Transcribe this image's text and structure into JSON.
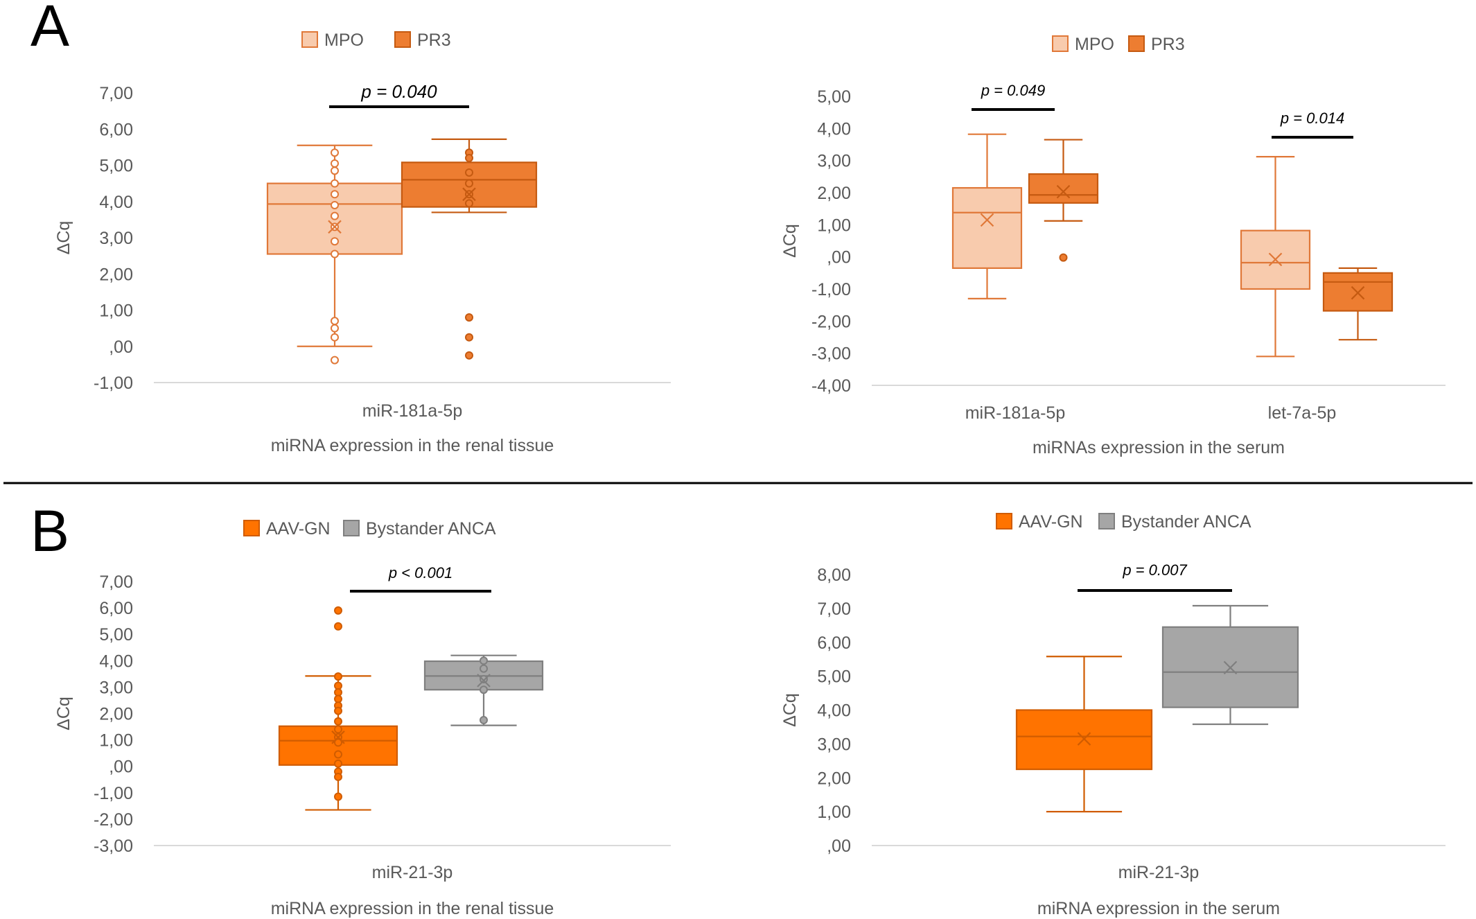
{
  "panel_labels": [
    "A",
    "B"
  ],
  "chart_data": [
    {
      "type": "box",
      "title": "",
      "xlabel": "miRNA expression in the renal tissue",
      "ylabel": "ΔCq",
      "ylim": [
        -1,
        7
      ],
      "yticks": [
        "-1,00",
        ",00",
        "1,00",
        "2,00",
        "3,00",
        "4,00",
        "5,00",
        "6,00",
        "7,00"
      ],
      "categories": [
        "miR-181a-5p"
      ],
      "legend": [
        {
          "name": "MPO",
          "fill": "#f8cbad",
          "stroke": "#e07838"
        },
        {
          "name": "PR3",
          "fill": "#ed7d31",
          "stroke": "#c55a11"
        }
      ],
      "series": [
        {
          "name": "MPO",
          "fill": "#f8cbad",
          "stroke": "#e07838",
          "point_fill": "#ffffff",
          "boxes": [
            {
              "min": 0.0,
              "q1": 2.55,
              "median": 3.93,
              "q3": 4.5,
              "max": 5.55,
              "mean": 3.3,
              "points": [
                5.35,
                5.05,
                4.85,
                4.5,
                4.2,
                3.9,
                3.6,
                3.3,
                2.9,
                2.55,
                0.7,
                0.5,
                0.25,
                -0.38
              ]
            }
          ]
        },
        {
          "name": "PR3",
          "fill": "#ed7d31",
          "stroke": "#c55a11",
          "point_fill": "#ed7d31",
          "boxes": [
            {
              "min": 3.7,
              "q1": 3.85,
              "median": 4.6,
              "q3": 5.08,
              "max": 5.72,
              "mean": 4.2,
              "points": [
                5.35,
                5.2,
                4.8,
                4.5,
                4.2,
                3.95,
                0.8,
                0.25,
                -0.25
              ]
            }
          ]
        }
      ],
      "annotations": [
        {
          "text": "p = 0.040",
          "category_span": [
            0,
            0
          ]
        }
      ]
    },
    {
      "type": "box",
      "title": "",
      "xlabel": "miRNAs expression in the serum",
      "ylabel": "ΔCq",
      "ylim": [
        -4,
        5
      ],
      "yticks": [
        "-4,00",
        "-3,00",
        "-2,00",
        "-1,00",
        ",00",
        "1,00",
        "2,00",
        "3,00",
        "4,00",
        "5,00"
      ],
      "categories": [
        "miR-181a-5p",
        "let-7a-5p"
      ],
      "legend": [
        {
          "name": "MPO",
          "fill": "#f8cbad",
          "stroke": "#e07838"
        },
        {
          "name": "PR3",
          "fill": "#ed7d31",
          "stroke": "#c55a11"
        }
      ],
      "series": [
        {
          "name": "MPO",
          "fill": "#f8cbad",
          "stroke": "#e07838",
          "point_fill": "#ffffff",
          "boxes": [
            {
              "min": -1.3,
              "q1": -0.35,
              "median": 1.38,
              "q3": 2.15,
              "max": 3.82,
              "mean": 1.15,
              "points": []
            },
            {
              "min": -3.1,
              "q1": -1.0,
              "median": -0.18,
              "q3": 0.82,
              "max": 3.12,
              "mean": -0.08,
              "points": []
            }
          ]
        },
        {
          "name": "PR3",
          "fill": "#ed7d31",
          "stroke": "#c55a11",
          "point_fill": "#ed7d31",
          "boxes": [
            {
              "min": 1.12,
              "q1": 1.68,
              "median": 1.93,
              "q3": 2.58,
              "max": 3.65,
              "mean": 2.03,
              "points": [
                -0.02
              ]
            },
            {
              "min": -2.58,
              "q1": -1.68,
              "median": -0.78,
              "q3": -0.5,
              "max": -0.35,
              "mean": -1.12,
              "points": []
            }
          ]
        }
      ],
      "annotations": [
        {
          "text": "p = 0.049",
          "category_span": [
            0,
            0
          ]
        },
        {
          "text": "p = 0.014",
          "category_span": [
            1,
            1
          ]
        }
      ]
    },
    {
      "type": "box",
      "title": "",
      "xlabel": "miRNA expression in the renal tissue",
      "ylabel": "ΔCq",
      "ylim": [
        -3,
        7
      ],
      "yticks": [
        "-3,00",
        "-2,00",
        "-1,00",
        ",00",
        "1,00",
        "2,00",
        "3,00",
        "4,00",
        "5,00",
        "6,00",
        "7,00"
      ],
      "categories": [
        "miR-21-3p"
      ],
      "legend": [
        {
          "name": "AAV-GN",
          "fill": "#ff7300",
          "stroke": "#d05c00"
        },
        {
          "name": "Bystander ANCA",
          "fill": "#a6a6a6",
          "stroke": "#7f7f7f"
        }
      ],
      "series": [
        {
          "name": "AAV-GN",
          "fill": "#ff7300",
          "stroke": "#d05c00",
          "point_fill": "#ff7300",
          "boxes": [
            {
              "min": -1.65,
              "q1": 0.05,
              "median": 0.97,
              "q3": 1.52,
              "max": 3.42,
              "mean": 1.1,
              "points": [
                5.9,
                5.3,
                3.4,
                3.05,
                2.8,
                2.55,
                2.3,
                2.1,
                1.7,
                1.4,
                1.1,
                0.9,
                0.45,
                0.1,
                -0.2,
                -0.4,
                -1.15
              ]
            }
          ]
        },
        {
          "name": "Bystander ANCA",
          "fill": "#a6a6a6",
          "stroke": "#7f7f7f",
          "point_fill": "#a6a6a6",
          "boxes": [
            {
              "min": 1.55,
              "q1": 2.9,
              "median": 3.42,
              "q3": 3.98,
              "max": 4.2,
              "mean": 3.25,
              "points": [
                4.0,
                3.7,
                3.3,
                2.9,
                1.75
              ]
            }
          ]
        }
      ],
      "annotations": [
        {
          "text": "p < 0.001",
          "category_span": [
            0,
            0
          ]
        }
      ]
    },
    {
      "type": "box",
      "title": "",
      "xlabel": "miRNA expression in the serum",
      "ylabel": "ΔCq",
      "ylim": [
        0,
        8
      ],
      "yticks": [
        ",00",
        "1,00",
        "2,00",
        "3,00",
        "4,00",
        "5,00",
        "6,00",
        "7,00",
        "8,00"
      ],
      "categories": [
        "miR-21-3p"
      ],
      "legend": [
        {
          "name": "AAV-GN",
          "fill": "#ff7300",
          "stroke": "#d05c00"
        },
        {
          "name": "Bystander ANCA",
          "fill": "#a6a6a6",
          "stroke": "#7f7f7f"
        }
      ],
      "series": [
        {
          "name": "AAV-GN",
          "fill": "#ff7300",
          "stroke": "#d05c00",
          "point_fill": "#ff7300",
          "boxes": [
            {
              "min": 1.0,
              "q1": 2.25,
              "median": 3.22,
              "q3": 4.0,
              "max": 5.58,
              "mean": 3.15,
              "points": []
            }
          ]
        },
        {
          "name": "Bystander ANCA",
          "fill": "#a6a6a6",
          "stroke": "#7f7f7f",
          "point_fill": "#a6a6a6",
          "boxes": [
            {
              "min": 3.58,
              "q1": 4.08,
              "median": 5.12,
              "q3": 6.45,
              "max": 7.08,
              "mean": 5.25,
              "points": []
            }
          ]
        }
      ],
      "annotations": [
        {
          "text": "p = 0.007",
          "category_span": [
            0,
            0
          ]
        }
      ]
    }
  ]
}
